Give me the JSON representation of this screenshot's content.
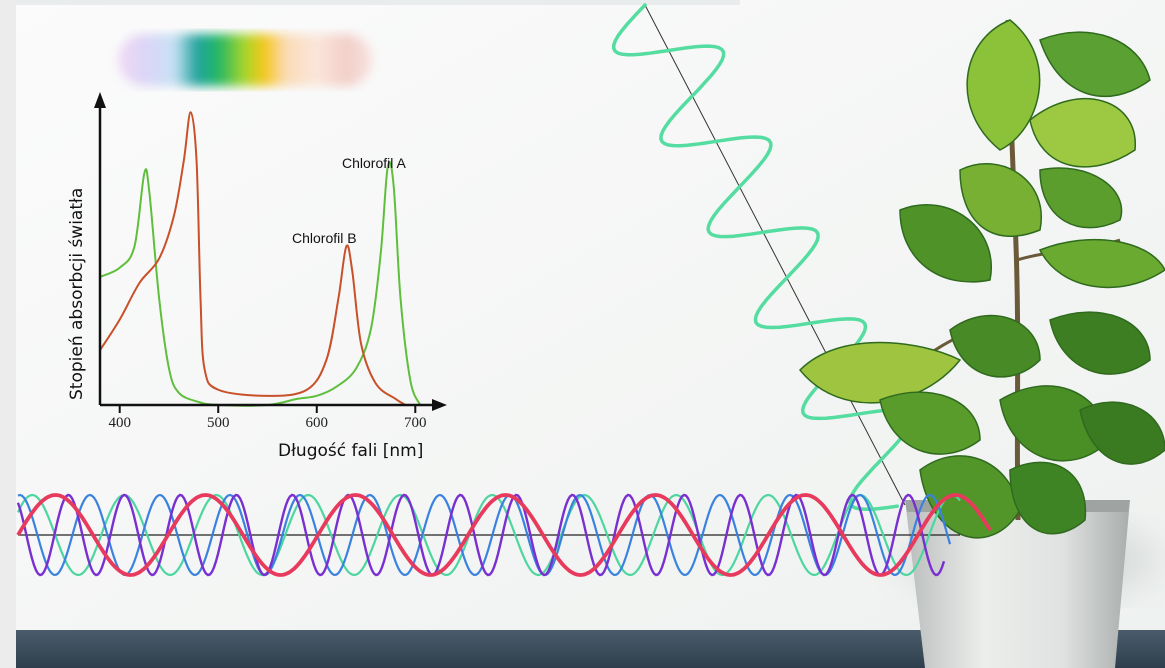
{
  "chart_data": {
    "type": "line",
    "title": "",
    "xlabel": "Długość fali [nm]",
    "ylabel": "Stopień absorbcji światła",
    "xlim": [
      380,
      720
    ],
    "ylim": [
      0,
      1.0
    ],
    "x_ticks": [
      "400",
      "500",
      "600",
      "700"
    ],
    "grid": false,
    "legend": "inline labels",
    "series": [
      {
        "name": "Chlorofil A",
        "color": "#5fbf3c",
        "points": [
          [
            380,
            0.42
          ],
          [
            400,
            0.45
          ],
          [
            415,
            0.52
          ],
          [
            425,
            0.76
          ],
          [
            430,
            0.7
          ],
          [
            440,
            0.35
          ],
          [
            450,
            0.12
          ],
          [
            460,
            0.04
          ],
          [
            480,
            0.01
          ],
          [
            500,
            0.0
          ],
          [
            550,
            0.0
          ],
          [
            580,
            0.02
          ],
          [
            600,
            0.03
          ],
          [
            620,
            0.06
          ],
          [
            640,
            0.12
          ],
          [
            655,
            0.25
          ],
          [
            665,
            0.5
          ],
          [
            672,
            0.78
          ],
          [
            678,
            0.72
          ],
          [
            685,
            0.35
          ],
          [
            695,
            0.08
          ],
          [
            705,
            0.0
          ]
        ]
      },
      {
        "name": "Chlorofil B",
        "color": "#c8502a",
        "points": [
          [
            380,
            0.18
          ],
          [
            400,
            0.28
          ],
          [
            420,
            0.4
          ],
          [
            440,
            0.48
          ],
          [
            455,
            0.62
          ],
          [
            465,
            0.8
          ],
          [
            472,
            0.96
          ],
          [
            478,
            0.8
          ],
          [
            482,
            0.35
          ],
          [
            486,
            0.12
          ],
          [
            500,
            0.05
          ],
          [
            550,
            0.03
          ],
          [
            590,
            0.05
          ],
          [
            610,
            0.15
          ],
          [
            622,
            0.35
          ],
          [
            630,
            0.52
          ],
          [
            636,
            0.44
          ],
          [
            645,
            0.2
          ],
          [
            660,
            0.07
          ],
          [
            680,
            0.02
          ],
          [
            690,
            0.0
          ]
        ]
      }
    ]
  },
  "colors": {
    "ray": "#55dca0",
    "wave_red": "#e83a5c",
    "wave_purple": "#7a2fd0",
    "wave_blue": "#3a82e0",
    "wave_green": "#4ed6a0",
    "floor": "#34495b"
  },
  "scene_elements": [
    "visible-spectrum-strip",
    "fiddle-leaf-fig-plant",
    "light-ray-wave",
    "light-waves"
  ]
}
